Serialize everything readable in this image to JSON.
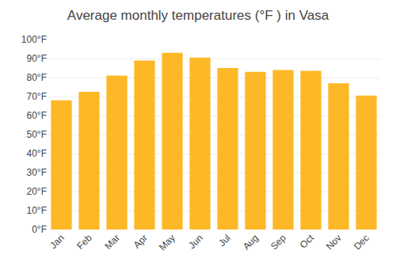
{
  "chart_data": {
    "type": "bar",
    "title": "Average monthly temperatures (°F ) in Vasa",
    "categories": [
      "Jan",
      "Feb",
      "Mar",
      "Apr",
      "May",
      "Jun",
      "Jul",
      "Aug",
      "Sep",
      "Oct",
      "Nov",
      "Dec"
    ],
    "values": [
      68,
      72.5,
      81,
      89,
      93,
      90.5,
      85,
      83,
      84,
      83.5,
      77,
      70.5
    ],
    "color": "#FDB827",
    "ylim": [
      0,
      100
    ],
    "yticks": [
      {
        "value": 0,
        "label": "0°F"
      },
      {
        "value": 10,
        "label": "10°F"
      },
      {
        "value": 20,
        "label": "20°F"
      },
      {
        "value": 30,
        "label": "30°F"
      },
      {
        "value": 40,
        "label": "40°F"
      },
      {
        "value": 50,
        "label": "50°F"
      },
      {
        "value": 60,
        "label": "60°F"
      },
      {
        "value": 70,
        "label": "70°F"
      },
      {
        "value": 80,
        "label": "80°F"
      },
      {
        "value": 90,
        "label": "90°F"
      },
      {
        "value": 100,
        "label": "100°F"
      }
    ],
    "grid": true
  }
}
